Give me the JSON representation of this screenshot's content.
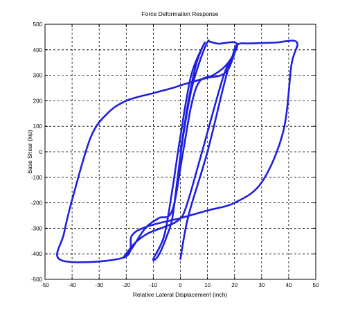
{
  "chart_data": {
    "type": "line",
    "title": "Force Deformation Response",
    "xlabel": "Relative Lateral Displacement (inch)",
    "ylabel": "Base Shear (kip)",
    "xlim": [
      -50,
      50
    ],
    "ylim": [
      -500,
      500
    ],
    "xticks": [
      -50,
      -40,
      -30,
      -20,
      -10,
      0,
      10,
      20,
      30,
      40,
      50
    ],
    "yticks": [
      -500,
      -400,
      -300,
      -200,
      -100,
      0,
      100,
      200,
      300,
      400,
      500
    ],
    "grid": true,
    "line_color": "#1f1fe0",
    "series": [
      {
        "points": [
          [
            0,
            0
          ],
          [
            3,
            200
          ],
          [
            6,
            350
          ],
          [
            9,
            428
          ],
          [
            4,
            300
          ],
          [
            0,
            60
          ],
          [
            -3,
            -150
          ],
          [
            -6,
            -330
          ],
          [
            -10,
            -420
          ],
          [
            -8,
            -405
          ],
          [
            -5,
            -330
          ],
          [
            -3,
            -260
          ],
          [
            -1,
            -100
          ],
          [
            1,
            60
          ],
          [
            4,
            240
          ],
          [
            7,
            350
          ],
          [
            10,
            430
          ],
          [
            11,
            431
          ],
          [
            14,
            424
          ],
          [
            21,
            420
          ],
          [
            16,
            300
          ],
          [
            8,
            0
          ],
          [
            2,
            -220
          ],
          [
            -1,
            -270
          ],
          [
            -6,
            -295
          ],
          [
            -12,
            -320
          ],
          [
            -17,
            -360
          ],
          [
            -21,
            -415
          ],
          [
            -18,
            -380
          ],
          [
            -13,
            -300
          ],
          [
            -8,
            -260
          ],
          [
            -3,
            -230
          ],
          [
            1,
            0
          ],
          [
            4,
            180
          ],
          [
            7,
            275
          ],
          [
            12,
            300
          ],
          [
            16,
            330
          ],
          [
            19,
            370
          ],
          [
            21,
            420
          ],
          [
            26,
            425
          ],
          [
            35,
            428
          ],
          [
            43,
            430
          ],
          [
            41,
            340
          ],
          [
            38,
            80
          ],
          [
            30,
            -120
          ],
          [
            20,
            -200
          ],
          [
            10,
            -230
          ],
          [
            0,
            -260
          ],
          [
            -8,
            -280
          ],
          [
            -14,
            -300
          ],
          [
            -18,
            -330
          ],
          [
            -21,
            -415
          ],
          [
            -44,
            -425
          ],
          [
            -43,
            -320
          ],
          [
            -39,
            -150
          ],
          [
            -33,
            60
          ],
          [
            -27,
            150
          ],
          [
            -20,
            200
          ],
          [
            -10,
            230
          ],
          [
            -3,
            250
          ],
          [
            3,
            270
          ],
          [
            10,
            290
          ],
          [
            15,
            300
          ],
          [
            18,
            330
          ],
          [
            21,
            420
          ],
          [
            17,
            300
          ],
          [
            10,
            0
          ],
          [
            3,
            -250
          ],
          [
            0,
            -420
          ]
        ]
      }
    ]
  }
}
